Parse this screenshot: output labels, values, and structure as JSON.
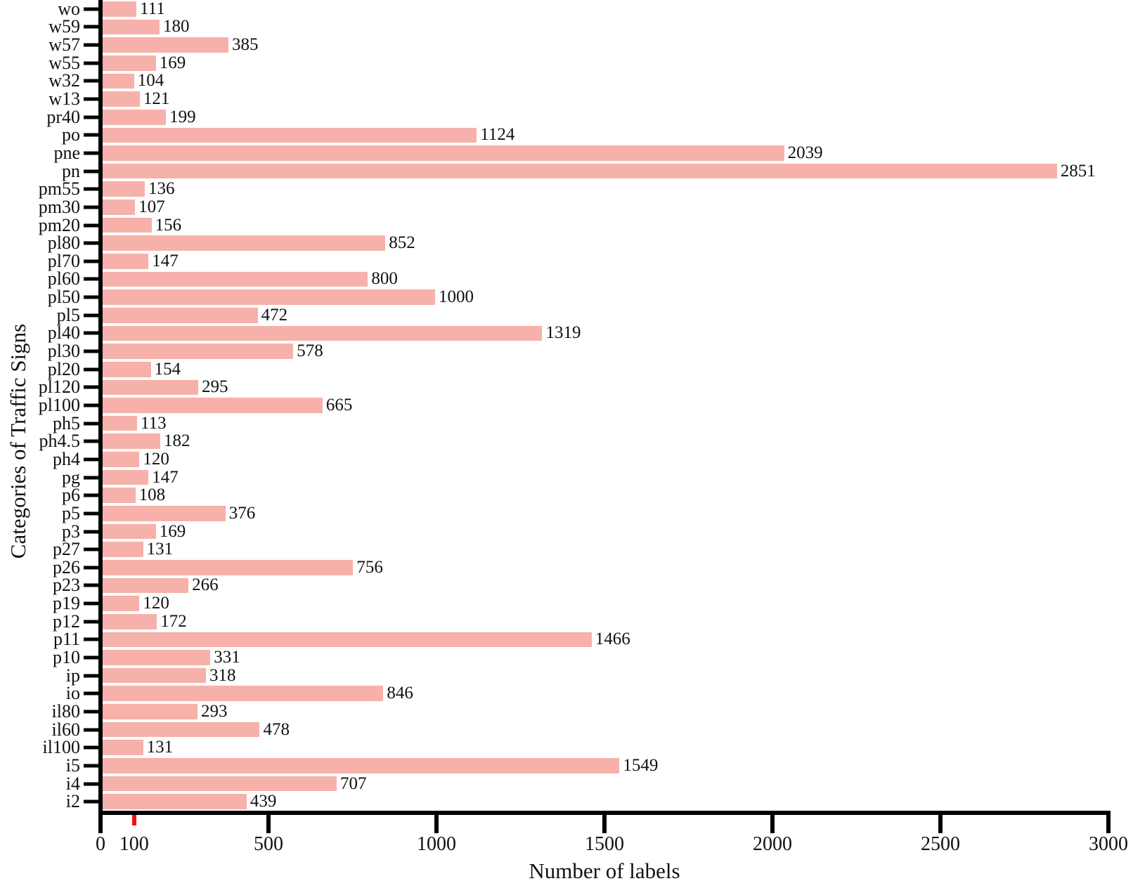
{
  "chart_data": {
    "type": "bar",
    "orientation": "horizontal",
    "xlabel": "Number of labels",
    "ylabel": "Categories of Traffic Signs",
    "xlim": [
      0,
      3000
    ],
    "xticks": [
      0,
      100,
      500,
      1000,
      1500,
      2000,
      2500,
      3000
    ],
    "highlight_tick": {
      "value": 100,
      "color": "#ee1111"
    },
    "bar_color": "#f6b1aa",
    "bar_edge_color": "#ffffff",
    "grid": false,
    "legend": null,
    "categories": [
      "wo",
      "w59",
      "w57",
      "w55",
      "w32",
      "w13",
      "pr40",
      "po",
      "pne",
      "pn",
      "pm55",
      "pm30",
      "pm20",
      "pl80",
      "pl70",
      "pl60",
      "pl50",
      "pl5",
      "pl40",
      "pl30",
      "pl20",
      "pl120",
      "pl100",
      "ph5",
      "ph4.5",
      "ph4",
      "pg",
      "p6",
      "p5",
      "p3",
      "p27",
      "p26",
      "p23",
      "p19",
      "p12",
      "p11",
      "p10",
      "ip",
      "io",
      "il80",
      "il60",
      "il100",
      "i5",
      "i4",
      "i2"
    ],
    "values": [
      111,
      180,
      385,
      169,
      104,
      121,
      199,
      1124,
      2039,
      2851,
      136,
      107,
      156,
      852,
      147,
      800,
      1000,
      472,
      1319,
      578,
      154,
      295,
      665,
      113,
      182,
      120,
      147,
      108,
      376,
      169,
      131,
      756,
      266,
      120,
      172,
      1466,
      331,
      318,
      846,
      293,
      478,
      131,
      1549,
      707,
      439
    ]
  }
}
